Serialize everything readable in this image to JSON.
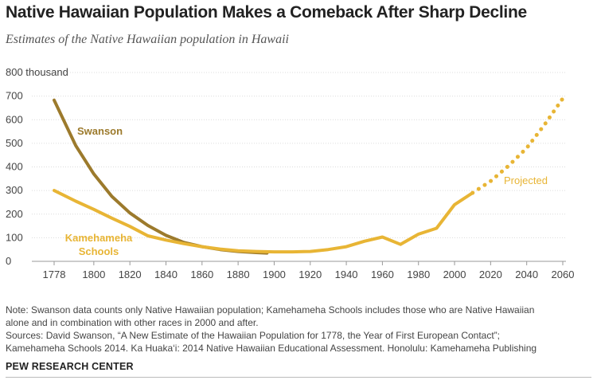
{
  "chart_data": {
    "type": "line",
    "title": "Native Hawaiian Population Makes a Comeback After Sharp Decline",
    "subtitle": "Estimates of the Native Hawaiian population in Hawaii",
    "ylabel_unit": "thousand",
    "ylim": [
      0,
      800
    ],
    "xlim": [
      1778,
      2060
    ],
    "yticks": [
      0,
      100,
      200,
      300,
      400,
      500,
      600,
      700,
      800
    ],
    "xticks": [
      1778,
      1800,
      1820,
      1840,
      1860,
      1880,
      1900,
      1920,
      1940,
      1960,
      1980,
      2000,
      2020,
      2040,
      2060
    ],
    "grid": true,
    "colors": {
      "swanson": "#9c7a2c",
      "kamehameha": "#e8b535",
      "projected": "#e8b535"
    },
    "series": [
      {
        "name": "Swanson",
        "x": [
          1778,
          1790,
          1800,
          1810,
          1820,
          1830,
          1840,
          1850,
          1860,
          1870,
          1880,
          1890,
          1896
        ],
        "values": [
          683,
          490,
          370,
          275,
          205,
          152,
          110,
          80,
          62,
          50,
          42,
          37,
          35
        ]
      },
      {
        "name": "Kamehameha Schools",
        "x": [
          1778,
          1790,
          1800,
          1810,
          1820,
          1830,
          1840,
          1850,
          1860,
          1870,
          1880,
          1890,
          1900,
          1910,
          1920,
          1930,
          1940,
          1950,
          1960,
          1970,
          1980,
          1990,
          2000,
          2010
        ],
        "values": [
          300,
          255,
          220,
          183,
          148,
          108,
          90,
          75,
          62,
          52,
          45,
          42,
          40,
          40,
          42,
          50,
          62,
          85,
          103,
          72,
          115,
          140,
          240,
          290
        ]
      },
      {
        "name": "Projected",
        "style": "dotted",
        "x": [
          2010,
          2020,
          2030,
          2040,
          2050,
          2060
        ],
        "values": [
          290,
          340,
          405,
          480,
          580,
          690
        ]
      }
    ],
    "labels": {
      "swanson": "Swanson",
      "kamehameha_line1": "Kamehameha",
      "kamehameha_line2": "Schools",
      "projected": "Projected"
    }
  },
  "notes": {
    "note_line1": "Note: Swanson data counts only Native Hawaiian population; Kamehameha Schools includes those who are Native Hawaiian",
    "note_line2": "alone and in combination with other races in 2000 and after.",
    "sources_line1": "Sources: David Swanson, “A New Estimate of the Hawaiian Population for 1778, the Year of First European Contact”;",
    "sources_line2": "Kamehameha Schools 2014. Ka Huaka‘i: 2014 Native Hawaiian Educational Assessment. Honolulu: Kamehameha Publishing"
  },
  "footer": {
    "org": "PEW RESEARCH CENTER"
  }
}
